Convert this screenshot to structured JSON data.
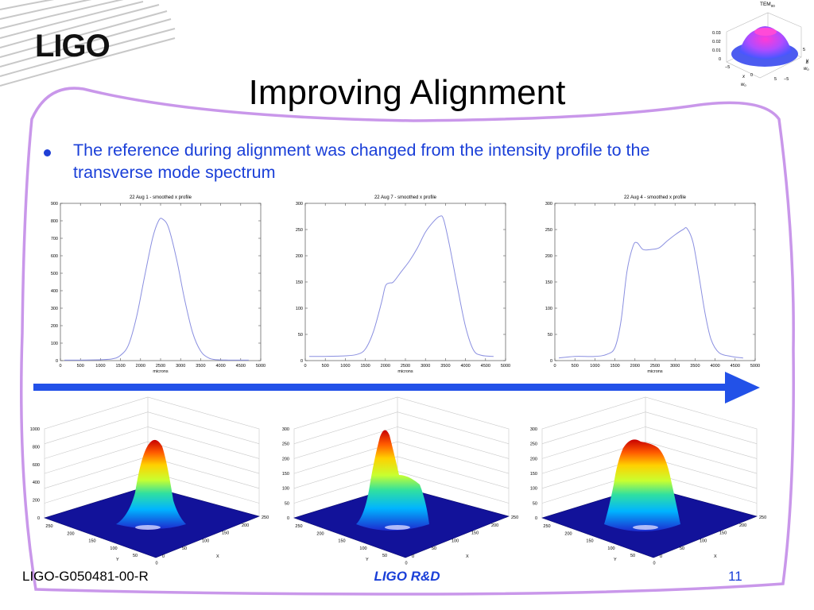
{
  "title": "Improving Alignment",
  "bullet": "The reference during alignment was changed from the intensity profile to the transverse mode spectrum",
  "footer": {
    "doc_id": "LIGO-G050481-00-R",
    "center": "LIGO R&D",
    "page": "11"
  },
  "logo": "LIGO",
  "corner_plot": {
    "title": "TEM",
    "title_sub": "00",
    "z_ticks": [
      "0.03",
      "0.02",
      "0.01",
      "0"
    ],
    "x_label": "x",
    "x_label_sub": "w",
    "y_label": "y",
    "y_label_sub": "w"
  },
  "colors": {
    "accent": "#1a3fd8",
    "frame": "#c997ea",
    "arrow": "#2251e8",
    "curve": "#8a8fe0"
  },
  "chart_data": [
    {
      "type": "line",
      "title": "22 Aug 1 - smoothed x profile",
      "xlabel": "microns",
      "xlim": [
        0,
        5000
      ],
      "ylim": [
        0,
        900
      ],
      "xticks": [
        "0",
        "500",
        "1000",
        "1500",
        "2000",
        "2500",
        "3000",
        "3500",
        "4000",
        "4500",
        "5000"
      ],
      "yticks": [
        "0",
        "100",
        "200",
        "300",
        "400",
        "500",
        "600",
        "700",
        "800",
        "900"
      ],
      "x": [
        100,
        500,
        1000,
        1300,
        1500,
        1700,
        1900,
        2100,
        2300,
        2450,
        2550,
        2700,
        2900,
        3100,
        3300,
        3500,
        3700,
        3900,
        4200,
        4700
      ],
      "y": [
        3,
        3,
        5,
        10,
        30,
        90,
        250,
        480,
        700,
        800,
        810,
        760,
        580,
        350,
        160,
        55,
        15,
        5,
        3,
        3
      ]
    },
    {
      "type": "line",
      "title": "22 Aug 7 - smoothed x profile",
      "xlabel": "microns",
      "xlim": [
        0,
        5000
      ],
      "ylim": [
        0,
        300
      ],
      "xticks": [
        "0",
        "500",
        "1000",
        "1500",
        "2000",
        "2500",
        "3000",
        "3500",
        "4000",
        "4500",
        "5000"
      ],
      "yticks": [
        "0",
        "50",
        "100",
        "150",
        "200",
        "250",
        "300"
      ],
      "x": [
        100,
        500,
        1000,
        1300,
        1500,
        1700,
        1900,
        2000,
        2100,
        2200,
        2400,
        2600,
        2800,
        3000,
        3200,
        3350,
        3450,
        3600,
        3800,
        4000,
        4200,
        4400,
        4700
      ],
      "y": [
        8,
        8,
        9,
        12,
        22,
        55,
        110,
        142,
        148,
        150,
        170,
        190,
        215,
        245,
        265,
        275,
        270,
        220,
        140,
        65,
        20,
        10,
        8
      ]
    },
    {
      "type": "line",
      "title": "22 Aug 4 - smoothed x profile",
      "xlabel": "microns",
      "xlim": [
        0,
        5000
      ],
      "ylim": [
        0,
        300
      ],
      "xticks": [
        "0",
        "500",
        "1000",
        "1500",
        "2000",
        "2500",
        "3000",
        "3500",
        "4000",
        "4500",
        "5000"
      ],
      "yticks": [
        "0",
        "50",
        "100",
        "150",
        "200",
        "250",
        "300"
      ],
      "x": [
        100,
        500,
        1000,
        1300,
        1500,
        1650,
        1800,
        1950,
        2050,
        2200,
        2400,
        2600,
        2800,
        3000,
        3200,
        3300,
        3450,
        3600,
        3750,
        3900,
        4100,
        4400,
        4700
      ],
      "y": [
        5,
        8,
        8,
        12,
        25,
        75,
        170,
        218,
        225,
        212,
        212,
        215,
        228,
        240,
        250,
        252,
        225,
        160,
        90,
        40,
        15,
        8,
        5
      ]
    },
    {
      "type": "3d-surface",
      "zticks": [
        "0",
        "200",
        "400",
        "600",
        "800",
        "1000"
      ],
      "xticks": [
        "0",
        "50",
        "100",
        "150",
        "200",
        "250"
      ],
      "yticks": [
        "0",
        "50",
        "100",
        "150",
        "200",
        "250"
      ],
      "xlabel": "X",
      "ylabel": "Y"
    },
    {
      "type": "3d-surface",
      "zticks": [
        "0",
        "50",
        "100",
        "150",
        "200",
        "250",
        "300"
      ],
      "xticks": [
        "0",
        "50",
        "100",
        "150",
        "200",
        "250"
      ],
      "yticks": [
        "0",
        "50",
        "100",
        "150",
        "200",
        "250"
      ],
      "xlabel": "X",
      "ylabel": "Y"
    },
    {
      "type": "3d-surface",
      "zticks": [
        "0",
        "50",
        "100",
        "150",
        "200",
        "250",
        "300"
      ],
      "xticks": [
        "0",
        "50",
        "100",
        "150",
        "200",
        "250"
      ],
      "yticks": [
        "0",
        "50",
        "100",
        "150",
        "200",
        "250"
      ],
      "xlabel": "X",
      "ylabel": "Y"
    }
  ]
}
